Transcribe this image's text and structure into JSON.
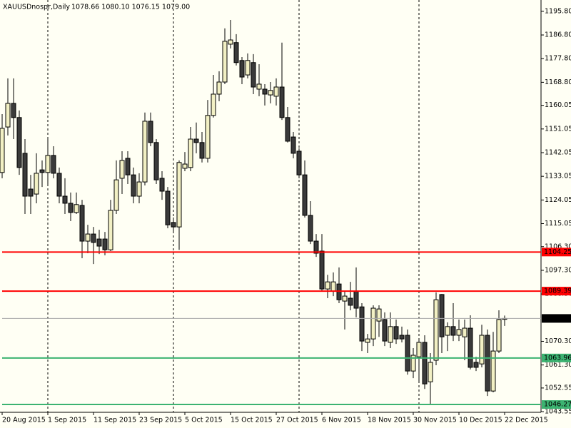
{
  "chart_data": {
    "type": "candlestick",
    "title": "XAUUSDnospr,Daily",
    "subtitle": "1078.66 1080.10 1076.15 1079.00",
    "categories": [
      "20 Aug 2015",
      null,
      null,
      null,
      null,
      null,
      null,
      null,
      "1 Sep 2015",
      null,
      null,
      null,
      null,
      null,
      null,
      null,
      "11 Sep 2015",
      null,
      null,
      null,
      null,
      null,
      null,
      null,
      "23 Sep 2015",
      null,
      null,
      null,
      null,
      null,
      null,
      null,
      "5 Oct 2015",
      null,
      null,
      null,
      null,
      null,
      null,
      null,
      "15 Oct 2015",
      null,
      null,
      null,
      null,
      null,
      null,
      null,
      "27 Oct 2015",
      null,
      null,
      null,
      null,
      null,
      null,
      null,
      "6 Nov 2015",
      null,
      null,
      null,
      null,
      null,
      null,
      null,
      "18 Nov 2015",
      null,
      null,
      null,
      null,
      null,
      null,
      null,
      "30 Nov 2015",
      null,
      null,
      null,
      null,
      null,
      null,
      null,
      "10 Dec 2015",
      null,
      null,
      null,
      null,
      null,
      null,
      null,
      "22 Dec 2015"
    ],
    "open": [
      1134.5,
      1151.8,
      1160.8,
      1155.4,
      1141.8,
      1128.2,
      1126.3,
      1135.5,
      1134.5,
      1141.0,
      1134.2,
      1125.5,
      1122.8,
      1119.3,
      1122.0,
      1108.4,
      1111.1,
      1109.2,
      1109.2,
      1105.1,
      1120.1,
      1132.3,
      1139.9,
      1133.6,
      1125.5,
      1130.9,
      1154.0,
      1145.9,
      1132.3,
      1127.4,
      1115.5,
      1113.8,
      1136.1,
      1136.4,
      1147.2,
      1145.9,
      1139.9,
      1156.2,
      1164.3,
      1168.9,
      1183.3,
      1183.9,
      1177.1,
      1171.6,
      1176.3,
      1166.2,
      1166.2,
      1164.0,
      1163.5,
      1167.0,
      1155.4,
      1148.0,
      1142.6,
      1133.6,
      1118.2,
      1108.4,
      1104.6,
      1090.2,
      1089.4,
      1092.1,
      1085.6,
      1086.7,
      1089.4,
      1083.4,
      1069.9,
      1071.2,
      1078.0,
      1078.6,
      1069.9,
      1075.9,
      1072.6,
      1072.6,
      1059.0,
      1064.4,
      1069.9,
      1054.9,
      1063.1,
      1088.1,
      1072.6,
      1075.9,
      1072.6,
      1072.0,
      1075.3,
      1062.3,
      1061.7,
      1072.6,
      1051.4,
      1066.6,
      1078.66
    ],
    "high": [
      1156.7,
      1170.3,
      1170.3,
      1158.1,
      1147.2,
      1133.6,
      1141.8,
      1139.1,
      1147.2,
      1144.5,
      1136.4,
      1132.3,
      1126.9,
      1126.9,
      1124.1,
      1114.6,
      1113.8,
      1112.7,
      1111.9,
      1124.1,
      1139.1,
      1142.6,
      1142.6,
      1136.4,
      1134.2,
      1157.3,
      1157.3,
      1147.2,
      1135.0,
      1129.0,
      1117.4,
      1139.1,
      1142.3,
      1151.8,
      1153.5,
      1149.9,
      1162.1,
      1171.6,
      1173.0,
      1189.3,
      1192.5,
      1187.1,
      1178.4,
      1179.8,
      1179.5,
      1175.7,
      1168.1,
      1168.9,
      1170.3,
      1183.9,
      1159.4,
      1149.9,
      1143.7,
      1139.1,
      1123.6,
      1111.1,
      1111.1,
      1095.6,
      1096.5,
      1098.4,
      1089.4,
      1092.9,
      1098.4,
      1084.8,
      1073.1,
      1084.0,
      1084.0,
      1081.3,
      1081.3,
      1078.6,
      1075.9,
      1074.8,
      1067.7,
      1071.2,
      1072.6,
      1065.8,
      1088.9,
      1088.3,
      1077.5,
      1084.8,
      1078.6,
      1078.6,
      1080.2,
      1064.4,
      1076.6,
      1074.8,
      1073.9,
      1082.1,
      1080.1
    ],
    "low": [
      1132.3,
      1148.6,
      1147.2,
      1133.6,
      1118.7,
      1118.7,
      1122.8,
      1129.0,
      1129.6,
      1132.3,
      1122.8,
      1118.7,
      1116.0,
      1118.7,
      1101.9,
      1103.8,
      1099.7,
      1103.5,
      1103.0,
      1104.6,
      1118.7,
      1126.3,
      1130.1,
      1122.8,
      1122.8,
      1129.6,
      1144.5,
      1130.1,
      1124.1,
      1113.3,
      1111.9,
      1105.1,
      1135.0,
      1135.0,
      1141.8,
      1138.3,
      1138.3,
      1155.4,
      1161.6,
      1168.1,
      1181.7,
      1175.2,
      1168.1,
      1170.3,
      1164.3,
      1163.5,
      1160.0,
      1160.8,
      1160.0,
      1154.5,
      1145.9,
      1139.9,
      1132.3,
      1117.4,
      1107.3,
      1102.4,
      1089.4,
      1086.7,
      1087.5,
      1084.8,
      1074.8,
      1082.1,
      1079.4,
      1066.6,
      1065.8,
      1068.5,
      1072.0,
      1068.5,
      1067.7,
      1069.3,
      1069.9,
      1057.6,
      1056.3,
      1054.9,
      1052.2,
      1046.0,
      1061.2,
      1065.8,
      1066.6,
      1070.4,
      1070.4,
      1063.1,
      1059.6,
      1059.0,
      1060.4,
      1049.5,
      1050.9,
      1065.8,
      1076.15
    ],
    "close": [
      1151.3,
      1160.8,
      1155.4,
      1136.4,
      1125.5,
      1125.5,
      1134.2,
      1134.5,
      1141.0,
      1134.2,
      1125.5,
      1122.8,
      1119.3,
      1122.3,
      1108.4,
      1111.1,
      1107.9,
      1106.5,
      1105.1,
      1120.1,
      1131.7,
      1139.1,
      1133.6,
      1125.5,
      1130.9,
      1154.0,
      1145.9,
      1131.7,
      1127.4,
      1114.6,
      1113.8,
      1138.3,
      1137.7,
      1147.2,
      1145.9,
      1139.9,
      1156.2,
      1164.3,
      1168.9,
      1184.4,
      1184.9,
      1176.3,
      1170.8,
      1177.1,
      1167.0,
      1168.1,
      1164.3,
      1165.7,
      1167.0,
      1155.4,
      1146.4,
      1141.8,
      1133.6,
      1118.2,
      1108.4,
      1103.8,
      1090.2,
      1092.9,
      1092.9,
      1086.1,
      1087.5,
      1084.0,
      1082.9,
      1070.4,
      1071.2,
      1082.9,
      1082.6,
      1070.4,
      1075.9,
      1071.2,
      1071.2,
      1059.0,
      1065.0,
      1069.9,
      1054.1,
      1062.3,
      1086.1,
      1072.0,
      1075.9,
      1072.6,
      1074.8,
      1075.3,
      1060.4,
      1060.4,
      1072.6,
      1051.4,
      1066.6,
      1078.6,
      1079.0
    ],
    "up_color": "#f2f0c4",
    "down_color": "#3a3a3a",
    "ylim": [
      1043.3,
      1200.1
    ],
    "yticks": [
      {
        "value": 1195.8,
        "label": "1195.80"
      },
      {
        "value": 1186.8,
        "label": "1186.80"
      },
      {
        "value": 1177.8,
        "label": "1177.80"
      },
      {
        "value": 1168.8,
        "label": "1168.80"
      },
      1160.05,
      1151.05,
      1142.05,
      1133.05,
      1124.05,
      1115.05,
      {
        "value": 1106.3,
        "label": "1106.30"
      },
      {
        "value": 1097.3,
        "label": "1097.30"
      },
      {
        "value": 1088.3,
        "label": "1088.30"
      },
      {
        "value": 1070.3,
        "label": "1070.30"
      },
      {
        "value": 1061.3,
        "label": "1061.30"
      },
      1052.55,
      1043.55
    ],
    "levels": [
      {
        "value": 1104.25,
        "color": "#ff0000"
      },
      {
        "value": 1089.39,
        "color": "#ff0000"
      },
      {
        "value": 1063.96,
        "color": "#3cb371"
      },
      {
        "value": 1046.27,
        "color": "#3cb371"
      },
      {
        "value": 1079,
        "label": "1079.00",
        "color": "#000000"
      }
    ]
  }
}
